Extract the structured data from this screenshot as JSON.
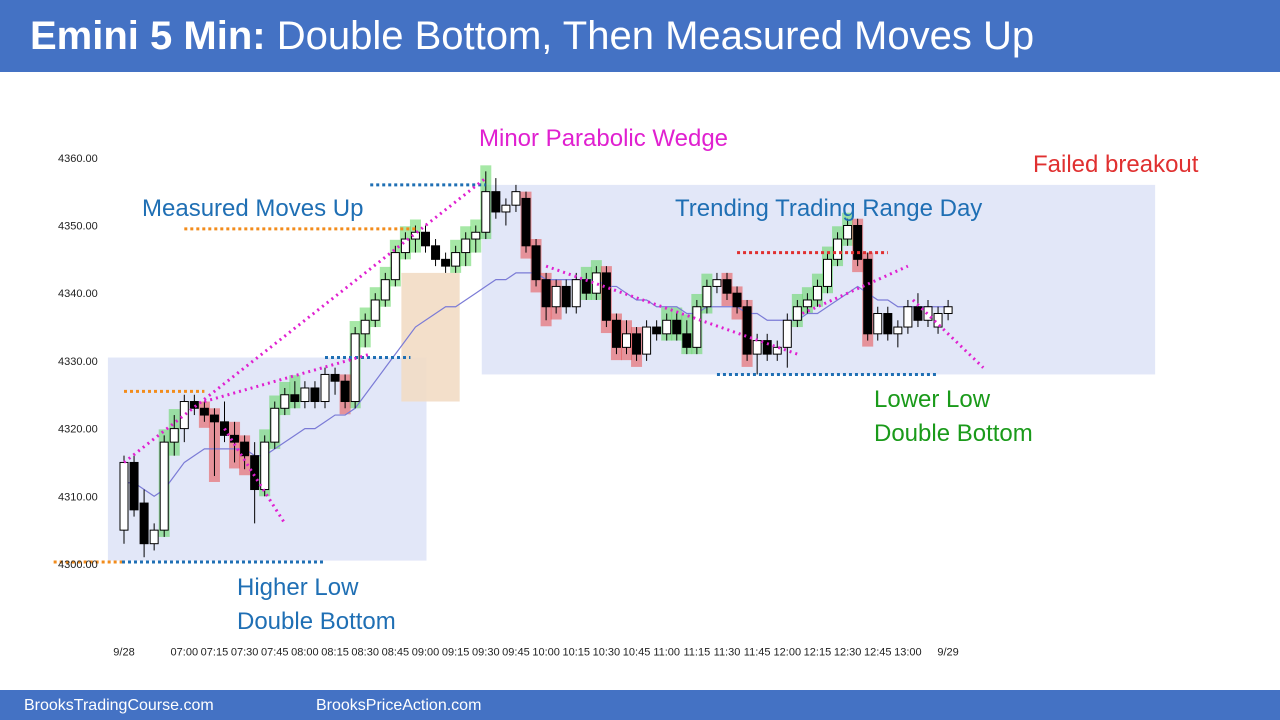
{
  "header": {
    "title_bold": "Emini 5 Min:",
    "title_rest": " Double Bottom, Then Measured Moves Up"
  },
  "footer": {
    "left_link": "BrooksTradingCourse.com",
    "right_link": "BrooksPriceAction.com"
  },
  "colors": {
    "header_bg": "#4472c4",
    "bull_highlight": "#5cd65c",
    "bear_highlight": "#e84c4c",
    "range_box": "#dfe4f7",
    "spike_box": "#f2dcc4",
    "ema": "#7b7bd6",
    "magenta": "#e020d0",
    "blue_dotted": "#1f6fb4",
    "orange_dotted": "#f28c1c",
    "red_dotted": "#e03030"
  },
  "chart_data": {
    "type": "candlestick",
    "title": "Emini 5 Min: Double Bottom, Then Measured Moves Up",
    "ylim": [
      4299,
      4361
    ],
    "y_ticks": [
      "4300.00",
      "4310.00",
      "4320.00",
      "4330.00",
      "4340.00",
      "4350.00",
      "4360.00"
    ],
    "y_tick_values": [
      4300,
      4310,
      4320,
      4330,
      4340,
      4350,
      4360
    ],
    "x_ticks": [
      {
        "label": "9/28",
        "bar": 0
      },
      {
        "label": "07:00",
        "bar": 6
      },
      {
        "label": "07:15",
        "bar": 9
      },
      {
        "label": "07:30",
        "bar": 12
      },
      {
        "label": "07:45",
        "bar": 15
      },
      {
        "label": "08:00",
        "bar": 18
      },
      {
        "label": "08:15",
        "bar": 21
      },
      {
        "label": "08:30",
        "bar": 24
      },
      {
        "label": "08:45",
        "bar": 27
      },
      {
        "label": "09:00",
        "bar": 30
      },
      {
        "label": "09:15",
        "bar": 33
      },
      {
        "label": "09:30",
        "bar": 36
      },
      {
        "label": "09:45",
        "bar": 39
      },
      {
        "label": "10:00",
        "bar": 42
      },
      {
        "label": "10:15",
        "bar": 45
      },
      {
        "label": "10:30",
        "bar": 48
      },
      {
        "label": "10:45",
        "bar": 51
      },
      {
        "label": "11:00",
        "bar": 54
      },
      {
        "label": "11:15",
        "bar": 57
      },
      {
        "label": "11:30",
        "bar": 60
      },
      {
        "label": "11:45",
        "bar": 63
      },
      {
        "label": "12:00",
        "bar": 66
      },
      {
        "label": "12:15",
        "bar": 69
      },
      {
        "label": "12:30",
        "bar": 72
      },
      {
        "label": "12:45",
        "bar": 75
      },
      {
        "label": "13:00",
        "bar": 78
      },
      {
        "label": "9/29",
        "bar": 82
      }
    ],
    "candles": [
      {
        "o": 4305,
        "h": 4316,
        "l": 4303,
        "c": 4315
      },
      {
        "o": 4315,
        "h": 4316,
        "l": 4307,
        "c": 4308
      },
      {
        "o": 4309,
        "h": 4311,
        "l": 4301,
        "c": 4303
      },
      {
        "o": 4303,
        "h": 4306,
        "l": 4302,
        "c": 4305
      },
      {
        "o": 4305,
        "h": 4319,
        "l": 4304,
        "c": 4318
      },
      {
        "o": 4318,
        "h": 4322,
        "l": 4316,
        "c": 4320
      },
      {
        "o": 4320,
        "h": 4325,
        "l": 4318,
        "c": 4324
      },
      {
        "o": 4324,
        "h": 4325,
        "l": 4322,
        "c": 4323
      },
      {
        "o": 4323,
        "h": 4324,
        "l": 4321,
        "c": 4322
      },
      {
        "o": 4322,
        "h": 4323,
        "l": 4313,
        "c": 4321
      },
      {
        "o": 4321,
        "h": 4324,
        "l": 4318,
        "c": 4319
      },
      {
        "o": 4319,
        "h": 4321,
        "l": 4315,
        "c": 4318
      },
      {
        "o": 4318,
        "h": 4319,
        "l": 4314,
        "c": 4316
      },
      {
        "o": 4316,
        "h": 4318,
        "l": 4306,
        "c": 4311
      },
      {
        "o": 4311,
        "h": 4319,
        "l": 4310,
        "c": 4318
      },
      {
        "o": 4318,
        "h": 4324,
        "l": 4317,
        "c": 4323
      },
      {
        "o": 4323,
        "h": 4326,
        "l": 4322,
        "c": 4325
      },
      {
        "o": 4325,
        "h": 4327,
        "l": 4323,
        "c": 4324
      },
      {
        "o": 4324,
        "h": 4327,
        "l": 4323,
        "c": 4326
      },
      {
        "o": 4326,
        "h": 4327,
        "l": 4323,
        "c": 4324
      },
      {
        "o": 4324,
        "h": 4329,
        "l": 4323,
        "c": 4328
      },
      {
        "o": 4328,
        "h": 4329,
        "l": 4325,
        "c": 4327
      },
      {
        "o": 4327,
        "h": 4328,
        "l": 4323,
        "c": 4324
      },
      {
        "o": 4324,
        "h": 4335,
        "l": 4323,
        "c": 4334
      },
      {
        "o": 4334,
        "h": 4337,
        "l": 4332,
        "c": 4336
      },
      {
        "o": 4336,
        "h": 4340,
        "l": 4335,
        "c": 4339
      },
      {
        "o": 4339,
        "h": 4343,
        "l": 4338,
        "c": 4342
      },
      {
        "o": 4342,
        "h": 4347,
        "l": 4341,
        "c": 4346
      },
      {
        "o": 4346,
        "h": 4349,
        "l": 4345,
        "c": 4348
      },
      {
        "o": 4348,
        "h": 4350,
        "l": 4346,
        "c": 4349
      },
      {
        "o": 4349,
        "h": 4350,
        "l": 4346,
        "c": 4347
      },
      {
        "o": 4347,
        "h": 4348,
        "l": 4344,
        "c": 4345
      },
      {
        "o": 4345,
        "h": 4346,
        "l": 4343,
        "c": 4344
      },
      {
        "o": 4344,
        "h": 4347,
        "l": 4343,
        "c": 4346
      },
      {
        "o": 4346,
        "h": 4349,
        "l": 4344,
        "c": 4348
      },
      {
        "o": 4348,
        "h": 4350,
        "l": 4346,
        "c": 4349
      },
      {
        "o": 4349,
        "h": 4358,
        "l": 4348,
        "c": 4355
      },
      {
        "o": 4355,
        "h": 4357,
        "l": 4351,
        "c": 4352
      },
      {
        "o": 4352,
        "h": 4354,
        "l": 4350,
        "c": 4353
      },
      {
        "o": 4353,
        "h": 4356,
        "l": 4352,
        "c": 4355
      },
      {
        "o": 4354,
        "h": 4355,
        "l": 4346,
        "c": 4347
      },
      {
        "o": 4347,
        "h": 4348,
        "l": 4341,
        "c": 4342
      },
      {
        "o": 4342,
        "h": 4343,
        "l": 4336,
        "c": 4338
      },
      {
        "o": 4338,
        "h": 4342,
        "l": 4337,
        "c": 4341
      },
      {
        "o": 4341,
        "h": 4342,
        "l": 4337,
        "c": 4338
      },
      {
        "o": 4338,
        "h": 4343,
        "l": 4337,
        "c": 4342
      },
      {
        "o": 4342,
        "h": 4343,
        "l": 4339,
        "c": 4340
      },
      {
        "o": 4340,
        "h": 4344,
        "l": 4339,
        "c": 4343
      },
      {
        "o": 4343,
        "h": 4344,
        "l": 4335,
        "c": 4336
      },
      {
        "o": 4336,
        "h": 4337,
        "l": 4331,
        "c": 4332
      },
      {
        "o": 4332,
        "h": 4336,
        "l": 4331,
        "c": 4334
      },
      {
        "o": 4334,
        "h": 4335,
        "l": 4330,
        "c": 4331
      },
      {
        "o": 4331,
        "h": 4336,
        "l": 4330,
        "c": 4335
      },
      {
        "o": 4335,
        "h": 4336,
        "l": 4333,
        "c": 4334
      },
      {
        "o": 4334,
        "h": 4337,
        "l": 4333,
        "c": 4336
      },
      {
        "o": 4336,
        "h": 4337,
        "l": 4333,
        "c": 4334
      },
      {
        "o": 4334,
        "h": 4336,
        "l": 4331,
        "c": 4332
      },
      {
        "o": 4332,
        "h": 4339,
        "l": 4331,
        "c": 4338
      },
      {
        "o": 4338,
        "h": 4342,
        "l": 4337,
        "c": 4341
      },
      {
        "o": 4341,
        "h": 4343,
        "l": 4340,
        "c": 4342
      },
      {
        "o": 4342,
        "h": 4343,
        "l": 4339,
        "c": 4340
      },
      {
        "o": 4340,
        "h": 4341,
        "l": 4337,
        "c": 4338
      },
      {
        "o": 4338,
        "h": 4339,
        "l": 4330,
        "c": 4331
      },
      {
        "o": 4331,
        "h": 4334,
        "l": 4328,
        "c": 4333
      },
      {
        "o": 4333,
        "h": 4334,
        "l": 4330,
        "c": 4331
      },
      {
        "o": 4331,
        "h": 4333,
        "l": 4330,
        "c": 4332
      },
      {
        "o": 4332,
        "h": 4337,
        "l": 4329,
        "c": 4336
      },
      {
        "o": 4336,
        "h": 4339,
        "l": 4335,
        "c": 4338
      },
      {
        "o": 4338,
        "h": 4340,
        "l": 4337,
        "c": 4339
      },
      {
        "o": 4339,
        "h": 4342,
        "l": 4338,
        "c": 4341
      },
      {
        "o": 4341,
        "h": 4346,
        "l": 4340,
        "c": 4345
      },
      {
        "o": 4345,
        "h": 4349,
        "l": 4344,
        "c": 4348
      },
      {
        "o": 4348,
        "h": 4351,
        "l": 4347,
        "c": 4350
      },
      {
        "o": 4350,
        "h": 4351,
        "l": 4344,
        "c": 4345
      },
      {
        "o": 4345,
        "h": 4346,
        "l": 4333,
        "c": 4334
      },
      {
        "o": 4334,
        "h": 4338,
        "l": 4333,
        "c": 4337
      },
      {
        "o": 4337,
        "h": 4338,
        "l": 4333,
        "c": 4334
      },
      {
        "o": 4334,
        "h": 4336,
        "l": 4332,
        "c": 4335
      },
      {
        "o": 4335,
        "h": 4339,
        "l": 4334,
        "c": 4338
      },
      {
        "o": 4338,
        "h": 4340,
        "l": 4335,
        "c": 4336
      },
      {
        "o": 4336,
        "h": 4339,
        "l": 4335,
        "c": 4338
      },
      {
        "o": 4335,
        "h": 4338,
        "l": 4334,
        "c": 4337
      },
      {
        "o": 4337,
        "h": 4339,
        "l": 4336,
        "c": 4338
      }
    ],
    "ema": [
      4312,
      4312,
      4311,
      4310,
      4311,
      4313,
      4315,
      4316,
      4317,
      4317,
      4317,
      4317,
      4317,
      4316,
      4316,
      4317,
      4318,
      4319,
      4320,
      4320,
      4321,
      4322,
      4322,
      4323,
      4325,
      4327,
      4329,
      4331,
      4333,
      4335,
      4336,
      4337,
      4338,
      4338,
      4339,
      4340,
      4341,
      4342,
      4342,
      4343,
      4343,
      4343,
      4342,
      4342,
      4342,
      4342,
      4342,
      4342,
      4341,
      4341,
      4340,
      4339,
      4339,
      4338,
      4338,
      4338,
      4337,
      4337,
      4338,
      4338,
      4338,
      4338,
      4337,
      4337,
      4336,
      4336,
      4336,
      4336,
      4337,
      4337,
      4338,
      4339,
      4340,
      4341,
      4340,
      4339,
      4339,
      4338,
      4338,
      4338,
      4338,
      4338,
      4338
    ],
    "bull_highlight_bars": [
      4,
      5,
      14,
      15,
      16,
      17,
      23,
      24,
      25,
      26,
      27,
      28,
      29,
      33,
      34,
      35,
      36,
      46,
      47,
      54,
      55,
      56,
      57,
      58,
      67,
      68,
      69,
      70,
      71,
      72
    ],
    "bear_highlight_bars": [
      8,
      9,
      11,
      12,
      22,
      40,
      41,
      42,
      43,
      48,
      49,
      50,
      51,
      60,
      61,
      62,
      73,
      74
    ],
    "annotations": {
      "measured_moves": "Measured Moves Up",
      "wedge": "Minor Parabolic Wedge",
      "trading_range": "Trending Trading Range Day",
      "failed_breakout": "Failed breakout",
      "lower_low_1": "Lower Low",
      "lower_low_2": "Double Bottom",
      "higher_low_1": "Higher Low",
      "higher_low_2": "Double Bottom"
    }
  }
}
